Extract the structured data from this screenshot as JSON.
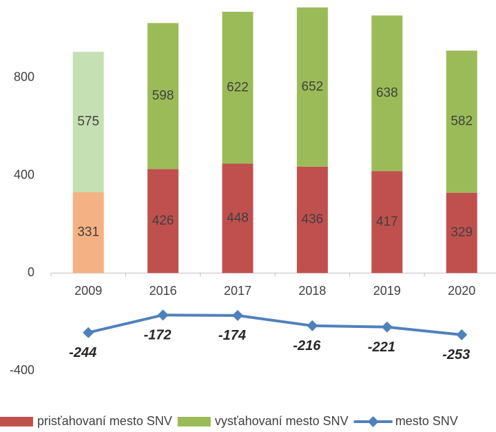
{
  "chart_data": {
    "type": "bar-line",
    "categories": [
      "2009",
      "2016",
      "2017",
      "2018",
      "2019",
      "2020"
    ],
    "series": [
      {
        "name": "prisťahovaní mesto SNV",
        "type": "bar",
        "color": "#c0504d",
        "colors": [
          "#f4b183",
          "#c0504d",
          "#c0504d",
          "#c0504d",
          "#c0504d",
          "#c0504d"
        ],
        "values": [
          331,
          426,
          448,
          436,
          417,
          329
        ]
      },
      {
        "name": "vysťahovaní mesto SNV",
        "type": "bar",
        "color": "#9bbb59",
        "colors": [
          "#c5e0b3",
          "#9bbb59",
          "#9bbb59",
          "#9bbb59",
          "#9bbb59",
          "#9bbb59"
        ],
        "values": [
          575,
          598,
          622,
          652,
          638,
          582
        ]
      },
      {
        "name": "mesto SNV",
        "type": "line",
        "color": "#4f81bd",
        "values": [
          -244,
          -172,
          -174,
          -216,
          -221,
          -253
        ]
      }
    ],
    "ylim": [
      -400,
      1100
    ],
    "yticks": [
      -400,
      0,
      400,
      800
    ],
    "stacked": true,
    "grid": false,
    "legend": "bottom"
  }
}
